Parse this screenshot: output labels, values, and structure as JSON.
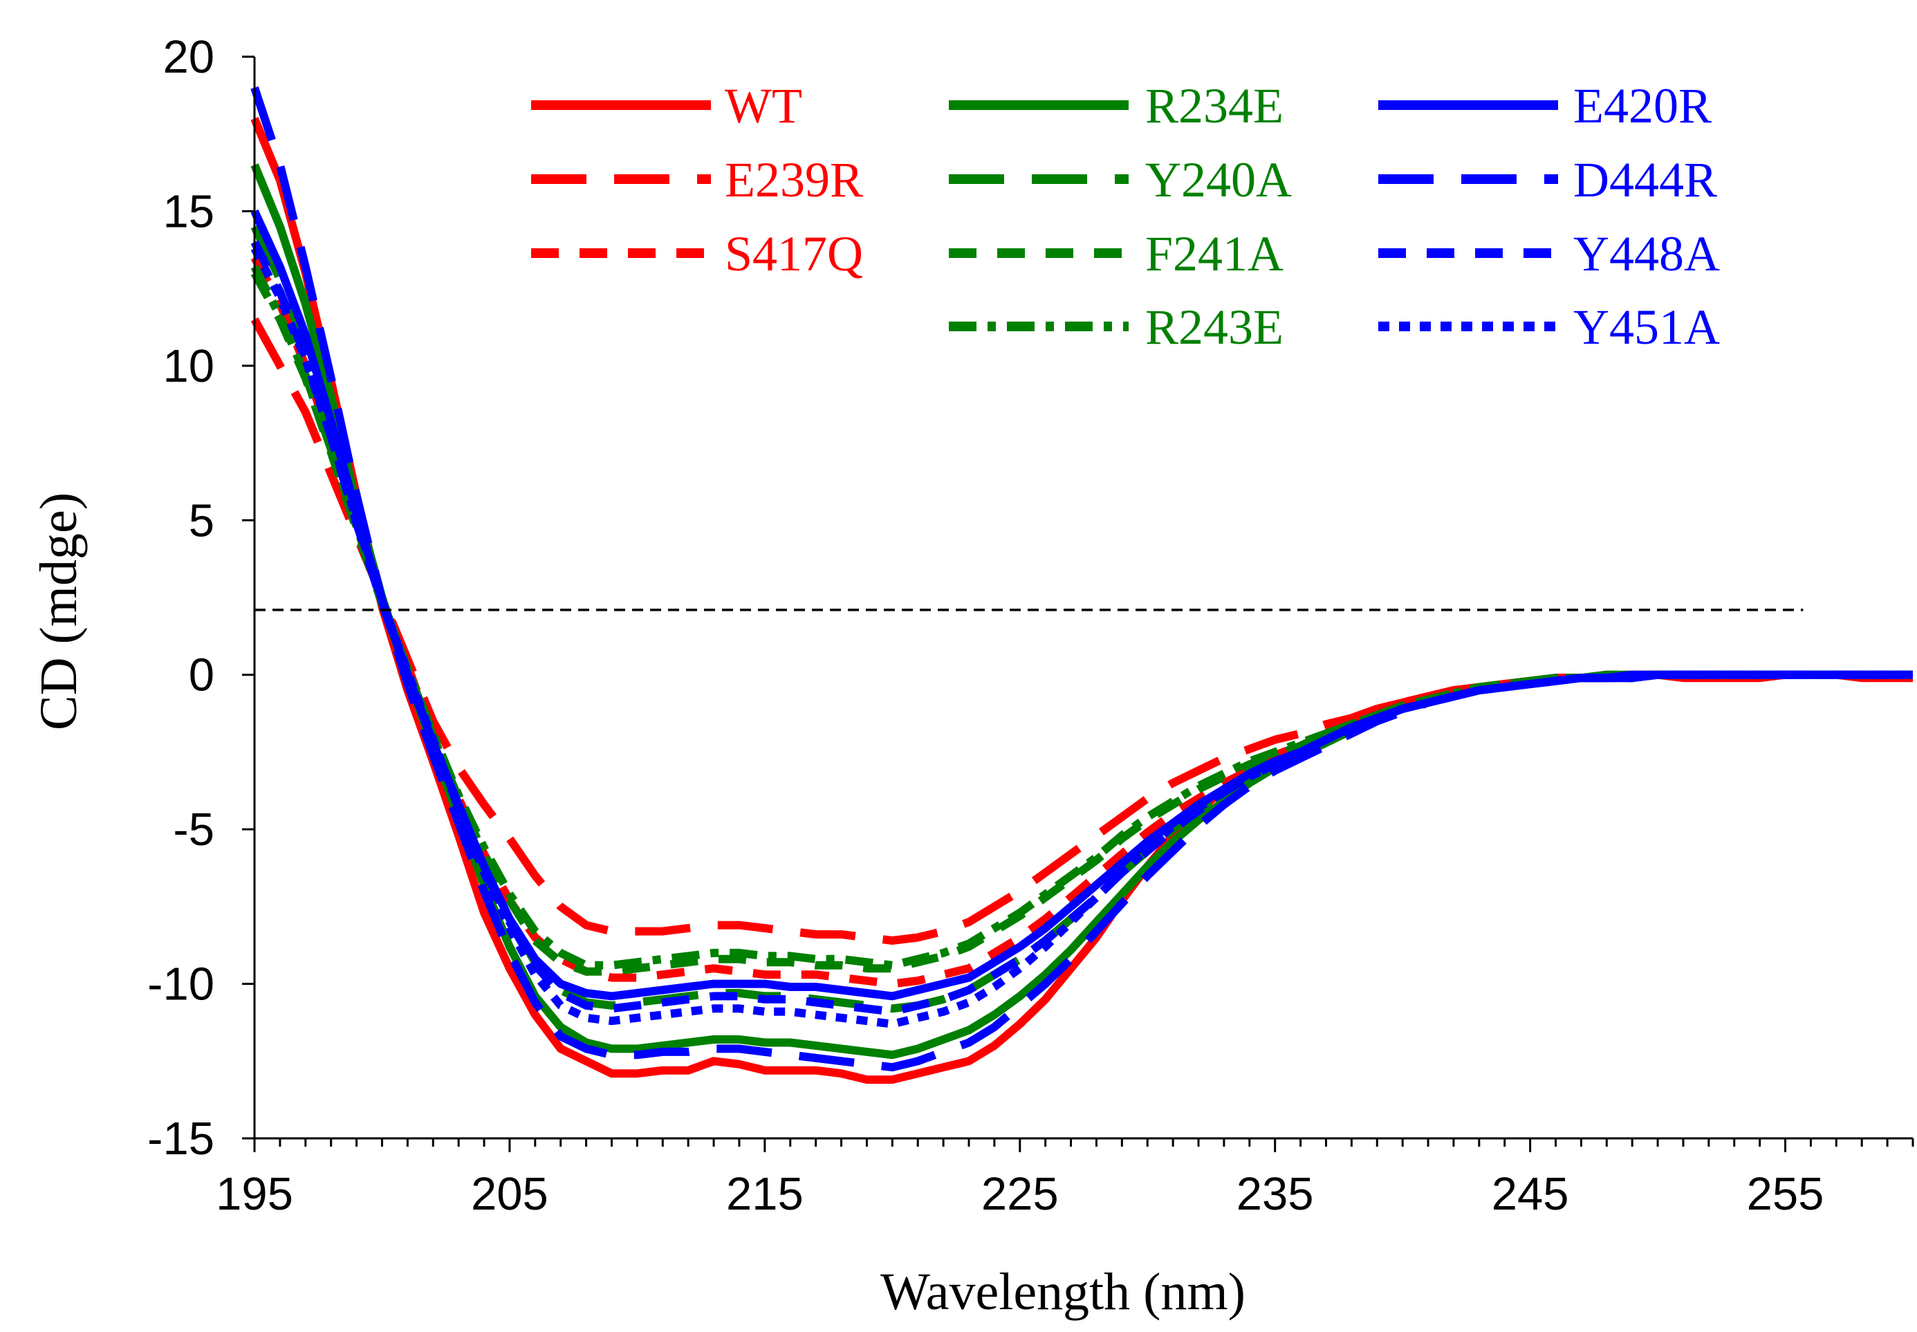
{
  "chart_data": {
    "type": "line",
    "title": "",
    "xlabel": "Wavelength (nm)",
    "ylabel": "CD (mdge)",
    "xlim": [
      195,
      260
    ],
    "ylim": [
      -15,
      20
    ],
    "x_ticks": [
      195,
      205,
      215,
      225,
      235,
      245,
      255
    ],
    "x_tick_labels": [
      "195",
      "205",
      "215",
      "225",
      "235",
      "245",
      "255"
    ],
    "y_ticks": [
      -15,
      -10,
      -5,
      0,
      5,
      10,
      15,
      20
    ],
    "y_tick_labels": [
      "-15",
      "-10",
      "-5",
      "0",
      "5",
      "10",
      "15",
      "20"
    ],
    "grid": false,
    "legend_position": "top-right",
    "reference_line": {
      "y": 2.1,
      "x_start": 195,
      "x_end": 255.7,
      "style": "dashed",
      "color": "#000000"
    },
    "x": [
      195,
      196,
      197,
      198,
      199,
      200,
      201,
      202,
      203,
      204,
      205,
      206,
      207,
      208,
      209,
      210,
      211,
      212,
      213,
      214,
      215,
      216,
      217,
      218,
      219,
      220,
      221,
      222,
      223,
      224,
      225,
      226,
      227,
      228,
      229,
      230,
      231,
      232,
      233,
      234,
      235,
      236,
      237,
      238,
      239,
      240,
      241,
      242,
      243,
      244,
      245,
      246,
      247,
      248,
      249,
      250,
      251,
      252,
      253,
      254,
      255,
      256,
      257,
      258,
      259,
      260
    ],
    "series": [
      {
        "name": "WT",
        "color": "#ff0000",
        "dash": "solid",
        "values": [
          18.0,
          16.0,
          13.0,
          9.5,
          5.8,
          2.2,
          -0.5,
          -2.8,
          -5.2,
          -7.7,
          -9.5,
          -11.0,
          -12.1,
          -12.5,
          -12.9,
          -12.9,
          -12.8,
          -12.8,
          -12.5,
          -12.6,
          -12.8,
          -12.8,
          -12.8,
          -12.9,
          -13.1,
          -13.1,
          -12.9,
          -12.7,
          -12.5,
          -12.0,
          -11.3,
          -10.5,
          -9.5,
          -8.5,
          -7.3,
          -6.2,
          -5.2,
          -4.4,
          -3.7,
          -3.0,
          -2.6,
          -2.3,
          -1.9,
          -1.4,
          -1.1,
          -0.9,
          -0.7,
          -0.5,
          -0.4,
          -0.3,
          -0.2,
          -0.1,
          -0.1,
          -0.1,
          0.0,
          0.0,
          -0.1,
          -0.1,
          -0.1,
          -0.1,
          0.0,
          0.0,
          0.0,
          -0.1,
          -0.1,
          -0.1
        ]
      },
      {
        "name": "E239R",
        "color": "#ff0000",
        "dash": "long-dash",
        "values": [
          11.5,
          10.0,
          8.5,
          6.5,
          4.5,
          2.5,
          0.5,
          -1.5,
          -3.0,
          -4.2,
          -5.3,
          -6.5,
          -7.5,
          -8.1,
          -8.3,
          -8.3,
          -8.3,
          -8.2,
          -8.1,
          -8.1,
          -8.2,
          -8.3,
          -8.4,
          -8.4,
          -8.5,
          -8.6,
          -8.5,
          -8.3,
          -8.0,
          -7.5,
          -7.0,
          -6.4,
          -5.8,
          -5.2,
          -4.6,
          -4.0,
          -3.5,
          -3.1,
          -2.7,
          -2.4,
          -2.1,
          -1.9,
          -1.6,
          -1.4,
          -1.1,
          -0.9,
          -0.7,
          -0.5,
          -0.4,
          -0.3,
          -0.2,
          -0.1,
          -0.1,
          -0.1,
          0.0,
          0.0,
          0.0,
          0.0,
          0.0,
          0.0,
          0.0,
          0.0,
          0.0,
          0.0,
          0.0,
          0.0
        ]
      },
      {
        "name": "S417Q",
        "color": "#ff0000",
        "dash": "dash",
        "values": [
          13.5,
          12.0,
          10.0,
          7.5,
          5.0,
          2.5,
          0.3,
          -2.0,
          -4.0,
          -5.8,
          -7.3,
          -8.5,
          -9.2,
          -9.6,
          -9.8,
          -9.8,
          -9.7,
          -9.6,
          -9.5,
          -9.6,
          -9.7,
          -9.7,
          -9.7,
          -9.8,
          -9.9,
          -10.0,
          -9.9,
          -9.7,
          -9.5,
          -9.0,
          -8.5,
          -7.9,
          -7.2,
          -6.5,
          -5.8,
          -5.1,
          -4.5,
          -4.0,
          -3.5,
          -3.1,
          -2.7,
          -2.4,
          -2.0,
          -1.7,
          -1.3,
          -1.0,
          -0.8,
          -0.6,
          -0.4,
          -0.3,
          -0.2,
          -0.1,
          -0.1,
          0.0,
          0.0,
          0.0,
          0.0,
          0.0,
          0.0,
          0.0,
          0.0,
          0.0,
          0.0,
          0.0,
          0.0,
          0.0
        ]
      },
      {
        "name": "R234E",
        "color": "#008000",
        "dash": "solid",
        "values": [
          16.5,
          14.5,
          12.0,
          9.0,
          5.5,
          2.5,
          0.0,
          -2.4,
          -4.6,
          -6.8,
          -8.8,
          -10.4,
          -11.4,
          -11.9,
          -12.1,
          -12.1,
          -12.0,
          -11.9,
          -11.8,
          -11.8,
          -11.9,
          -11.9,
          -12.0,
          -12.1,
          -12.2,
          -12.3,
          -12.1,
          -11.8,
          -11.5,
          -11.0,
          -10.4,
          -9.7,
          -8.9,
          -8.0,
          -7.1,
          -6.2,
          -5.4,
          -4.7,
          -4.1,
          -3.5,
          -3.0,
          -2.6,
          -2.2,
          -1.8,
          -1.4,
          -1.1,
          -0.9,
          -0.7,
          -0.5,
          -0.4,
          -0.3,
          -0.2,
          -0.1,
          -0.1,
          -0.1,
          0.0,
          0.0,
          0.0,
          0.0,
          0.0,
          0.0,
          0.0,
          0.0,
          0.0,
          0.0,
          0.0
        ]
      },
      {
        "name": "Y240A",
        "color": "#008000",
        "dash": "long-dash",
        "values": [
          14.5,
          12.8,
          10.6,
          7.9,
          5.0,
          2.3,
          0.0,
          -2.2,
          -4.3,
          -6.3,
          -7.9,
          -9.3,
          -10.2,
          -10.6,
          -10.7,
          -10.6,
          -10.5,
          -10.4,
          -10.3,
          -10.3,
          -10.4,
          -10.4,
          -10.5,
          -10.6,
          -10.7,
          -10.8,
          -10.7,
          -10.5,
          -10.2,
          -9.7,
          -9.2,
          -8.6,
          -7.9,
          -7.2,
          -6.4,
          -5.7,
          -5.0,
          -4.4,
          -3.8,
          -3.3,
          -2.9,
          -2.5,
          -2.1,
          -1.7,
          -1.4,
          -1.1,
          -0.9,
          -0.7,
          -0.5,
          -0.4,
          -0.3,
          -0.2,
          -0.1,
          -0.1,
          -0.1,
          0.0,
          0.0,
          0.0,
          0.0,
          0.0,
          0.0,
          0.0,
          0.0,
          0.0,
          0.0,
          0.0
        ]
      },
      {
        "name": "F241A",
        "color": "#008000",
        "dash": "dash",
        "values": [
          13.0,
          11.5,
          9.6,
          7.2,
          4.7,
          2.3,
          0.2,
          -2.0,
          -4.0,
          -5.8,
          -7.3,
          -8.6,
          -9.3,
          -9.6,
          -9.6,
          -9.5,
          -9.4,
          -9.3,
          -9.2,
          -9.2,
          -9.3,
          -9.3,
          -9.4,
          -9.4,
          -9.5,
          -9.5,
          -9.3,
          -9.1,
          -8.8,
          -8.3,
          -7.8,
          -7.2,
          -6.6,
          -6.0,
          -5.3,
          -4.7,
          -4.2,
          -3.7,
          -3.3,
          -2.9,
          -2.6,
          -2.3,
          -1.9,
          -1.6,
          -1.3,
          -1.0,
          -0.8,
          -0.6,
          -0.4,
          -0.3,
          -0.2,
          -0.1,
          -0.1,
          0.0,
          0.0,
          0.0,
          0.0,
          0.0,
          0.0,
          0.0,
          0.0,
          0.0,
          0.0,
          0.0,
          0.0,
          0.0
        ]
      },
      {
        "name": "R243E",
        "color": "#008000",
        "dash": "dash-dot",
        "values": [
          13.2,
          11.6,
          9.7,
          7.3,
          4.8,
          2.4,
          0.2,
          -1.9,
          -3.9,
          -5.6,
          -7.1,
          -8.3,
          -9.0,
          -9.4,
          -9.4,
          -9.3,
          -9.2,
          -9.1,
          -9.0,
          -9.0,
          -9.1,
          -9.1,
          -9.2,
          -9.2,
          -9.3,
          -9.4,
          -9.2,
          -9.0,
          -8.7,
          -8.2,
          -7.7,
          -7.1,
          -6.5,
          -5.9,
          -5.2,
          -4.6,
          -4.1,
          -3.6,
          -3.2,
          -2.8,
          -2.5,
          -2.2,
          -1.9,
          -1.6,
          -1.3,
          -1.0,
          -0.8,
          -0.6,
          -0.4,
          -0.3,
          -0.2,
          -0.1,
          -0.1,
          0.0,
          0.0,
          0.0,
          0.0,
          0.0,
          0.0,
          0.0,
          0.0,
          0.0,
          0.0,
          0.0,
          0.0,
          0.0
        ]
      },
      {
        "name": "E420R",
        "color": "#0000ff",
        "dash": "solid",
        "values": [
          15.0,
          13.2,
          11.0,
          8.2,
          5.2,
          2.4,
          0.0,
          -2.2,
          -4.2,
          -6.2,
          -7.9,
          -9.2,
          -10.0,
          -10.3,
          -10.4,
          -10.3,
          -10.2,
          -10.1,
          -10.0,
          -10.0,
          -10.0,
          -10.1,
          -10.1,
          -10.2,
          -10.3,
          -10.4,
          -10.2,
          -10.0,
          -9.8,
          -9.3,
          -8.8,
          -8.2,
          -7.5,
          -6.8,
          -6.1,
          -5.4,
          -4.8,
          -4.2,
          -3.7,
          -3.2,
          -2.8,
          -2.5,
          -2.1,
          -1.7,
          -1.4,
          -1.1,
          -0.9,
          -0.7,
          -0.5,
          -0.4,
          -0.3,
          -0.2,
          -0.1,
          -0.1,
          0.0,
          0.0,
          0.0,
          0.0,
          0.0,
          0.0,
          0.0,
          0.0,
          0.0,
          0.0,
          0.0,
          0.0
        ]
      },
      {
        "name": "D444R",
        "color": "#0000ff",
        "dash": "long-dash",
        "values": [
          19.0,
          16.5,
          13.2,
          9.6,
          5.8,
          2.4,
          -0.3,
          -2.6,
          -4.8,
          -7.0,
          -9.0,
          -10.6,
          -11.7,
          -12.1,
          -12.3,
          -12.3,
          -12.2,
          -12.2,
          -12.1,
          -12.1,
          -12.2,
          -12.3,
          -12.4,
          -12.5,
          -12.6,
          -12.7,
          -12.5,
          -12.2,
          -11.9,
          -11.4,
          -10.7,
          -10.0,
          -9.2,
          -8.3,
          -7.4,
          -6.5,
          -5.7,
          -4.9,
          -4.2,
          -3.6,
          -3.1,
          -2.7,
          -2.3,
          -1.9,
          -1.5,
          -1.2,
          -0.9,
          -0.7,
          -0.5,
          -0.4,
          -0.3,
          -0.2,
          -0.1,
          -0.1,
          -0.1,
          0.0,
          0.0,
          0.0,
          0.0,
          0.0,
          0.0,
          0.0,
          0.0,
          0.0,
          0.0,
          0.0
        ]
      },
      {
        "name": "Y448A",
        "color": "#0000ff",
        "dash": "dash",
        "values": [
          14.0,
          12.4,
          10.3,
          7.7,
          4.9,
          2.3,
          0.0,
          -2.2,
          -4.3,
          -6.3,
          -8.0,
          -9.4,
          -10.3,
          -10.7,
          -10.8,
          -10.7,
          -10.6,
          -10.5,
          -10.4,
          -10.4,
          -10.5,
          -10.5,
          -10.6,
          -10.7,
          -10.8,
          -10.9,
          -10.7,
          -10.5,
          -10.2,
          -9.7,
          -9.2,
          -8.6,
          -7.9,
          -7.2,
          -6.4,
          -5.7,
          -5.0,
          -4.4,
          -3.8,
          -3.3,
          -2.9,
          -2.5,
          -2.1,
          -1.7,
          -1.4,
          -1.1,
          -0.9,
          -0.7,
          -0.5,
          -0.4,
          -0.3,
          -0.2,
          -0.1,
          -0.1,
          -0.1,
          0.0,
          0.0,
          0.0,
          0.0,
          0.0,
          0.0,
          0.0,
          0.0,
          0.0,
          0.0,
          0.0
        ]
      },
      {
        "name": "Y451A",
        "color": "#0000ff",
        "dash": "dot",
        "values": [
          13.8,
          12.2,
          10.2,
          7.7,
          5.0,
          2.4,
          0.1,
          -2.1,
          -4.3,
          -6.4,
          -8.2,
          -9.7,
          -10.7,
          -11.1,
          -11.2,
          -11.1,
          -11.0,
          -10.9,
          -10.8,
          -10.8,
          -10.9,
          -10.9,
          -11.0,
          -11.1,
          -11.2,
          -11.3,
          -11.1,
          -10.9,
          -10.6,
          -10.1,
          -9.5,
          -8.8,
          -8.0,
          -7.2,
          -6.4,
          -5.6,
          -4.9,
          -4.3,
          -3.8,
          -3.3,
          -2.9,
          -2.5,
          -2.1,
          -1.7,
          -1.4,
          -1.1,
          -0.9,
          -0.7,
          -0.5,
          -0.4,
          -0.3,
          -0.2,
          -0.1,
          -0.1,
          -0.1,
          0.0,
          0.0,
          0.0,
          0.0,
          0.0,
          0.0,
          0.0,
          0.0,
          0.0,
          0.0,
          0.0
        ]
      }
    ]
  }
}
